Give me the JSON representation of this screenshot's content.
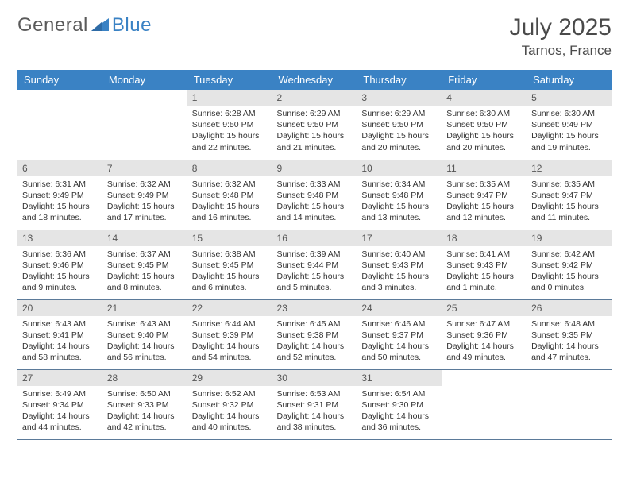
{
  "brand": {
    "part1": "General",
    "part2": "Blue"
  },
  "title": "July 2025",
  "location": "Tarnos, France",
  "colors": {
    "header_bg": "#3a82c4",
    "header_text": "#ffffff",
    "daynum_bg": "#e5e5e5",
    "daynum_text": "#555555",
    "cell_border": "#5b7a99",
    "body_text": "#333333",
    "title_text": "#4a4a4a",
    "logo_gray": "#5a5a5a",
    "logo_blue": "#3a82c4",
    "page_bg": "#ffffff"
  },
  "typography": {
    "title_fontsize": 30,
    "location_fontsize": 17,
    "header_fontsize": 13,
    "daynum_fontsize": 12,
    "body_fontsize": 10.5,
    "font_family": "Arial, Helvetica, sans-serif"
  },
  "headers": [
    "Sunday",
    "Monday",
    "Tuesday",
    "Wednesday",
    "Thursday",
    "Friday",
    "Saturday"
  ],
  "weeks": [
    [
      null,
      null,
      {
        "n": "1",
        "sr": "6:28 AM",
        "ss": "9:50 PM",
        "dl": "15 hours and 22 minutes."
      },
      {
        "n": "2",
        "sr": "6:29 AM",
        "ss": "9:50 PM",
        "dl": "15 hours and 21 minutes."
      },
      {
        "n": "3",
        "sr": "6:29 AM",
        "ss": "9:50 PM",
        "dl": "15 hours and 20 minutes."
      },
      {
        "n": "4",
        "sr": "6:30 AM",
        "ss": "9:50 PM",
        "dl": "15 hours and 20 minutes."
      },
      {
        "n": "5",
        "sr": "6:30 AM",
        "ss": "9:49 PM",
        "dl": "15 hours and 19 minutes."
      }
    ],
    [
      {
        "n": "6",
        "sr": "6:31 AM",
        "ss": "9:49 PM",
        "dl": "15 hours and 18 minutes."
      },
      {
        "n": "7",
        "sr": "6:32 AM",
        "ss": "9:49 PM",
        "dl": "15 hours and 17 minutes."
      },
      {
        "n": "8",
        "sr": "6:32 AM",
        "ss": "9:48 PM",
        "dl": "15 hours and 16 minutes."
      },
      {
        "n": "9",
        "sr": "6:33 AM",
        "ss": "9:48 PM",
        "dl": "15 hours and 14 minutes."
      },
      {
        "n": "10",
        "sr": "6:34 AM",
        "ss": "9:48 PM",
        "dl": "15 hours and 13 minutes."
      },
      {
        "n": "11",
        "sr": "6:35 AM",
        "ss": "9:47 PM",
        "dl": "15 hours and 12 minutes."
      },
      {
        "n": "12",
        "sr": "6:35 AM",
        "ss": "9:47 PM",
        "dl": "15 hours and 11 minutes."
      }
    ],
    [
      {
        "n": "13",
        "sr": "6:36 AM",
        "ss": "9:46 PM",
        "dl": "15 hours and 9 minutes."
      },
      {
        "n": "14",
        "sr": "6:37 AM",
        "ss": "9:45 PM",
        "dl": "15 hours and 8 minutes."
      },
      {
        "n": "15",
        "sr": "6:38 AM",
        "ss": "9:45 PM",
        "dl": "15 hours and 6 minutes."
      },
      {
        "n": "16",
        "sr": "6:39 AM",
        "ss": "9:44 PM",
        "dl": "15 hours and 5 minutes."
      },
      {
        "n": "17",
        "sr": "6:40 AM",
        "ss": "9:43 PM",
        "dl": "15 hours and 3 minutes."
      },
      {
        "n": "18",
        "sr": "6:41 AM",
        "ss": "9:43 PM",
        "dl": "15 hours and 1 minute."
      },
      {
        "n": "19",
        "sr": "6:42 AM",
        "ss": "9:42 PM",
        "dl": "15 hours and 0 minutes."
      }
    ],
    [
      {
        "n": "20",
        "sr": "6:43 AM",
        "ss": "9:41 PM",
        "dl": "14 hours and 58 minutes."
      },
      {
        "n": "21",
        "sr": "6:43 AM",
        "ss": "9:40 PM",
        "dl": "14 hours and 56 minutes."
      },
      {
        "n": "22",
        "sr": "6:44 AM",
        "ss": "9:39 PM",
        "dl": "14 hours and 54 minutes."
      },
      {
        "n": "23",
        "sr": "6:45 AM",
        "ss": "9:38 PM",
        "dl": "14 hours and 52 minutes."
      },
      {
        "n": "24",
        "sr": "6:46 AM",
        "ss": "9:37 PM",
        "dl": "14 hours and 50 minutes."
      },
      {
        "n": "25",
        "sr": "6:47 AM",
        "ss": "9:36 PM",
        "dl": "14 hours and 49 minutes."
      },
      {
        "n": "26",
        "sr": "6:48 AM",
        "ss": "9:35 PM",
        "dl": "14 hours and 47 minutes."
      }
    ],
    [
      {
        "n": "27",
        "sr": "6:49 AM",
        "ss": "9:34 PM",
        "dl": "14 hours and 44 minutes."
      },
      {
        "n": "28",
        "sr": "6:50 AM",
        "ss": "9:33 PM",
        "dl": "14 hours and 42 minutes."
      },
      {
        "n": "29",
        "sr": "6:52 AM",
        "ss": "9:32 PM",
        "dl": "14 hours and 40 minutes."
      },
      {
        "n": "30",
        "sr": "6:53 AM",
        "ss": "9:31 PM",
        "dl": "14 hours and 38 minutes."
      },
      {
        "n": "31",
        "sr": "6:54 AM",
        "ss": "9:30 PM",
        "dl": "14 hours and 36 minutes."
      },
      null,
      null
    ]
  ],
  "labels": {
    "sunrise": "Sunrise:",
    "sunset": "Sunset:",
    "daylight": "Daylight:"
  }
}
